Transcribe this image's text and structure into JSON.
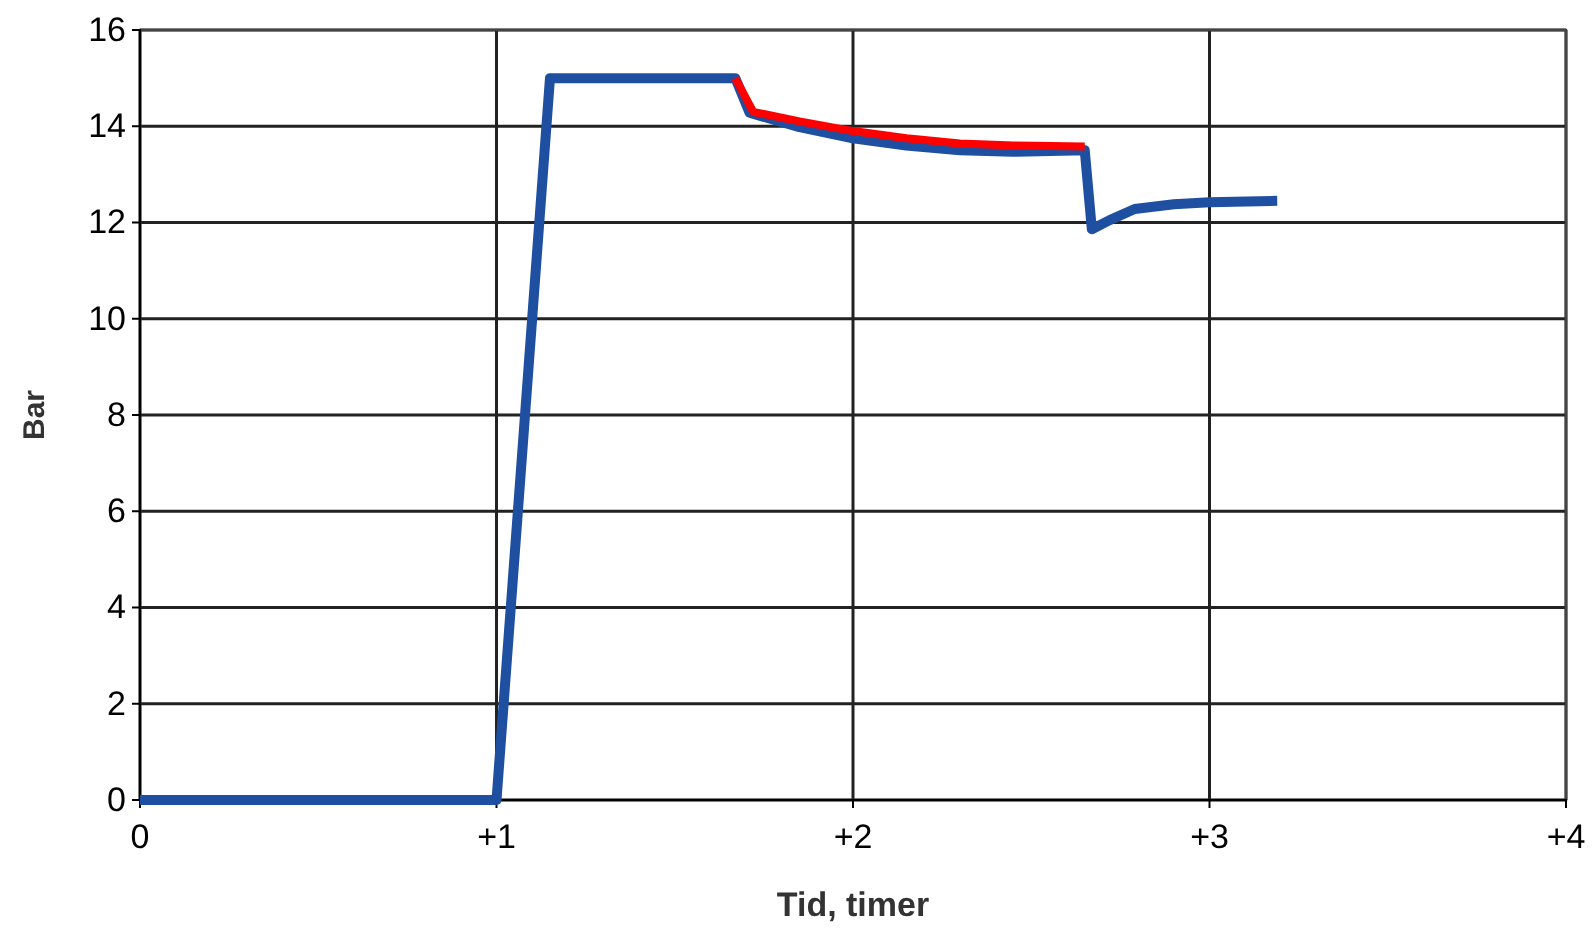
{
  "chart_data": {
    "type": "line",
    "xlabel": "Tid, timer",
    "ylabel": "Bar",
    "xlim": [
      0,
      4
    ],
    "ylim": [
      0,
      16
    ],
    "xticks": [
      0,
      {
        "value": 1,
        "label": "+1"
      },
      {
        "value": 2,
        "label": "+2"
      },
      {
        "value": 3,
        "label": "+3"
      },
      {
        "value": 4,
        "label": "+4"
      }
    ],
    "yticks": [
      0,
      2,
      4,
      6,
      8,
      10,
      12,
      14,
      16
    ],
    "grid": true,
    "marker": "none",
    "line_style": "solid",
    "series": [
      {
        "color": "#1f4fa0",
        "x": [
          0,
          1.0,
          1.15,
          1.67,
          1.71,
          1.85,
          2.0,
          2.15,
          2.3,
          2.45,
          2.65,
          2.67,
          2.72,
          2.79,
          2.9,
          3.0,
          3.19
        ],
        "values": [
          0,
          0,
          15,
          15,
          14.28,
          13.98,
          13.75,
          13.6,
          13.5,
          13.47,
          13.5,
          11.86,
          12.05,
          12.28,
          12.38,
          12.42,
          12.45
        ]
      },
      {
        "color": "#ff0000",
        "x": [
          1.67,
          1.72,
          1.85,
          2.0,
          2.15,
          2.3,
          2.45,
          2.65
        ],
        "values": [
          15,
          14.3,
          14.1,
          13.9,
          13.75,
          13.64,
          13.6,
          13.58
        ]
      }
    ]
  }
}
